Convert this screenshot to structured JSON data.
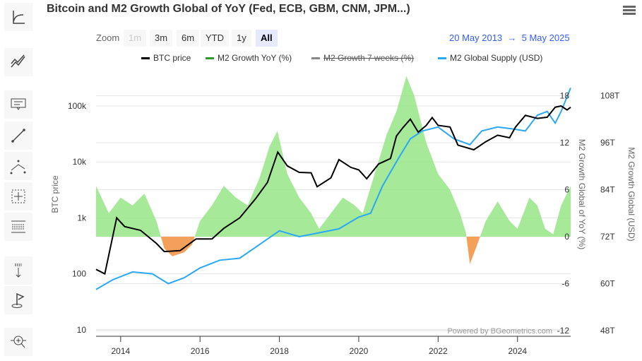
{
  "title": "Bitcoin and M2 Growth Global of YoY (Fed, ECB, GBM, CNM, JPM...)",
  "toolbar": [
    "trend-icon",
    "parallel-lines-icon",
    "text-annotation-icon",
    "line-segment-icon",
    "elliott-wave-icon",
    "crosshair-measure-icon",
    "fibonacci-icon",
    "vertical-counter-icon",
    "flag-icon",
    "zoom-pan-icon"
  ],
  "range_selector": {
    "label": "Zoom",
    "buttons": [
      "1m",
      "3m",
      "6m",
      "YTD",
      "1y",
      "All"
    ],
    "selected": "All",
    "from": "20 May 2013",
    "arrow": "→",
    "to": "5 May 2025"
  },
  "credits": "Powered by BGeometrics.com",
  "colors": {
    "btc": "#000000",
    "m2_growth_pos": "#90e57f",
    "m2_growth_neg": "#f5a05a",
    "m2_7w": "#888888",
    "m2_supply": "#2aa8f5"
  },
  "chart_data": {
    "type": "line",
    "title": "Bitcoin and M2 Growth Global of YoY (Fed, ECB, GBM, CNM, JPM...)",
    "legend": [
      "BTC price",
      "M2 Growth YoY (%)",
      "M2 Growth 7 weeks (%)",
      "M2 Global Supply (USD)"
    ],
    "legend_hidden": [
      "M2 Growth 7 weeks (%)"
    ],
    "legend_placement": "top",
    "x_ticks": [
      "2014",
      "2016",
      "2018",
      "2020",
      "2022",
      "2024"
    ],
    "axes": {
      "btc": {
        "label": "BTC price",
        "scale": "log",
        "ticks": [
          "10",
          "100",
          "1k",
          "10k",
          "100k"
        ],
        "range": [
          10,
          200000
        ]
      },
      "growth": {
        "label": "M2 Growth Global of YoY (%)",
        "ticks": [
          "-12",
          "-6",
          "0",
          "6",
          "12",
          "18"
        ],
        "range": [
          -12,
          18
        ]
      },
      "supply": {
        "label": "M2 Growth Global (USD)",
        "ticks": [
          "48T",
          "60T",
          "72T",
          "84T",
          "96T",
          "108T"
        ],
        "range": [
          48,
          108
        ]
      }
    },
    "series": [
      {
        "name": "BTC price",
        "x": [
          2013.38,
          2013.6,
          2013.9,
          2014.1,
          2014.5,
          2014.9,
          2015.1,
          2015.5,
          2015.9,
          2016.3,
          2016.6,
          2017.0,
          2017.4,
          2017.7,
          2017.96,
          2018.2,
          2018.5,
          2018.8,
          2018.95,
          2019.3,
          2019.5,
          2019.8,
          2020.0,
          2020.2,
          2020.5,
          2020.8,
          2020.95,
          2021.1,
          2021.3,
          2021.5,
          2021.7,
          2021.85,
          2022.0,
          2022.3,
          2022.5,
          2022.9,
          2023.2,
          2023.5,
          2023.8,
          2023.95,
          2024.2,
          2024.5,
          2024.75,
          2024.95,
          2025.1,
          2025.25,
          2025.34
        ],
        "values": [
          120,
          100,
          1000,
          700,
          600,
          350,
          250,
          260,
          420,
          420,
          650,
          1000,
          2200,
          4300,
          15000,
          8500,
          6500,
          6400,
          3600,
          5200,
          11000,
          8000,
          7200,
          5000,
          9200,
          11500,
          29000,
          40000,
          58000,
          34000,
          45000,
          62000,
          45000,
          42000,
          20000,
          16500,
          23000,
          30000,
          27000,
          42000,
          68000,
          60000,
          63000,
          95000,
          100000,
          85000,
          95000
        ]
      },
      {
        "name": "M2 Growth YoY (%)",
        "x": [
          2013.38,
          2013.7,
          2014.0,
          2014.3,
          2014.6,
          2014.9,
          2015.1,
          2015.3,
          2015.6,
          2015.8,
          2016.0,
          2016.3,
          2016.6,
          2016.9,
          2017.2,
          2017.5,
          2017.75,
          2017.95,
          2018.2,
          2018.5,
          2018.8,
          2019.0,
          2019.3,
          2019.6,
          2019.9,
          2020.1,
          2020.4,
          2020.7,
          2020.95,
          2021.2,
          2021.4,
          2021.7,
          2022.0,
          2022.3,
          2022.55,
          2022.7,
          2022.8,
          2022.95,
          2023.2,
          2023.5,
          2023.8,
          2024.0,
          2024.3,
          2024.5,
          2024.7,
          2024.9,
          2025.1,
          2025.34
        ],
        "values": [
          6.5,
          3,
          5,
          4,
          5.5,
          2,
          -1.5,
          -2.5,
          -2,
          -1,
          2,
          4,
          6.5,
          5,
          4,
          7.5,
          11.5,
          13.5,
          8,
          5,
          3,
          1,
          3,
          5,
          4,
          3,
          8,
          13,
          16,
          20.5,
          18,
          12,
          8,
          6,
          3,
          0.5,
          -3.5,
          -1.5,
          2,
          4.5,
          2,
          1,
          5,
          4,
          1,
          0.3,
          4,
          6.5
        ]
      },
      {
        "name": "M2 Global Supply (USD)",
        "x": [
          2013.38,
          2013.8,
          2014.3,
          2014.8,
          2015.2,
          2015.6,
          2016.0,
          2016.5,
          2017.0,
          2017.5,
          2018.0,
          2018.5,
          2019.0,
          2019.5,
          2020.0,
          2020.3,
          2020.6,
          2021.0,
          2021.3,
          2021.6,
          2022.0,
          2022.4,
          2022.8,
          2023.1,
          2023.5,
          2023.9,
          2024.2,
          2024.5,
          2024.75,
          2024.95,
          2025.1,
          2025.34
        ],
        "values": [
          58.5,
          61,
          63,
          62.5,
          60,
          61.5,
          64,
          66,
          66.5,
          70,
          73.5,
          72,
          73,
          74,
          77,
          78,
          85,
          92,
          97,
          99,
          100,
          97,
          95.5,
          99,
          100,
          99.5,
          99,
          103,
          104,
          101,
          104,
          110
        ]
      }
    ]
  }
}
